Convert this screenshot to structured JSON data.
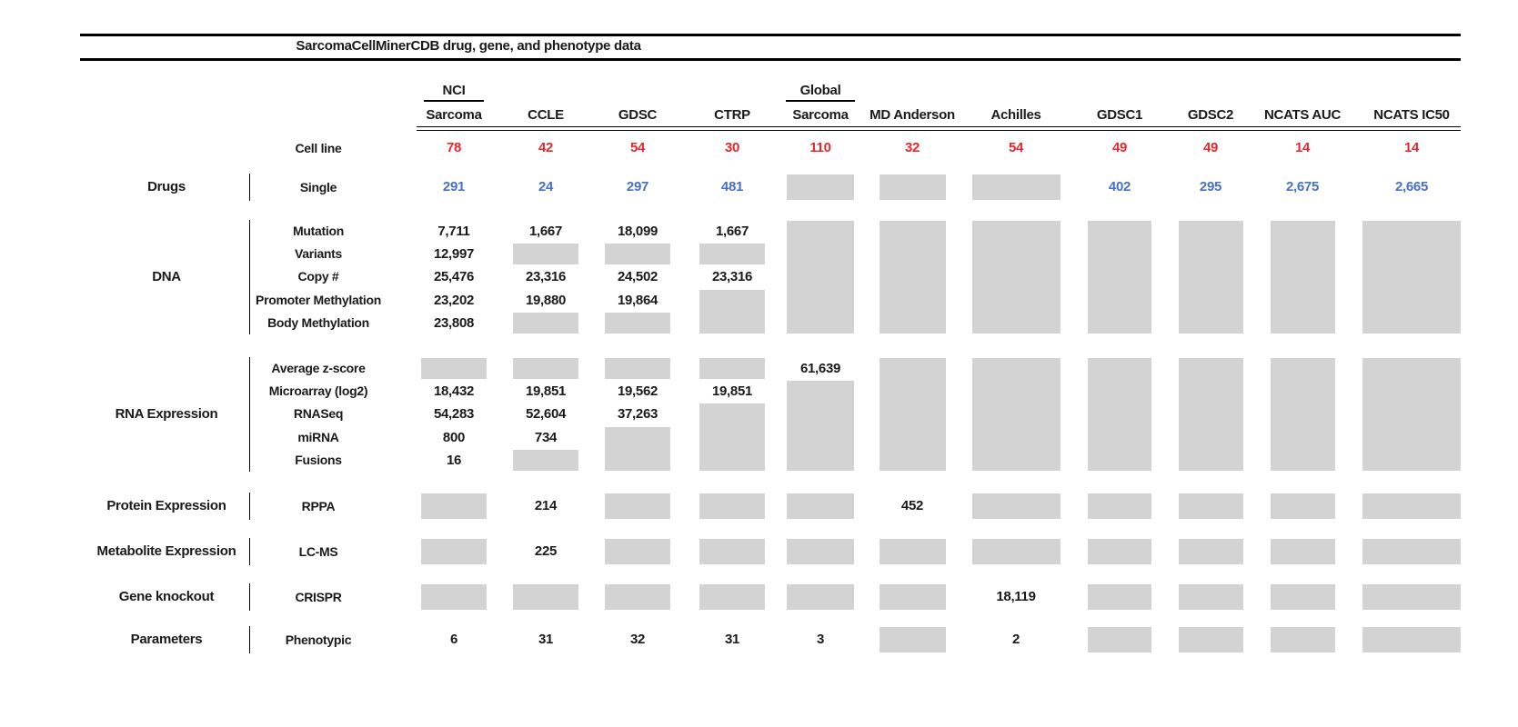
{
  "colors": {
    "red": "#e8262d",
    "blue": "#4671c6",
    "gray": "#d3d3d3",
    "line": "#000000",
    "text": "#1a1a1a"
  },
  "chart_data": {
    "type": "table",
    "title": "SarcomaCellMinerCDB drug, gene, and phenotype data",
    "note_gray_blocks": "gray filled block = no data available",
    "cell_line_label": "Cell line",
    "columns": [
      {
        "top_label": "NCI",
        "label": "Sarcoma",
        "cell_line_count": "78"
      },
      {
        "label": "CCLE",
        "cell_line_count": "42"
      },
      {
        "label": "GDSC",
        "cell_line_count": "54"
      },
      {
        "label": "CTRP",
        "cell_line_count": "30"
      },
      {
        "top_label": "Global",
        "label": "Sarcoma",
        "cell_line_count": "110"
      },
      {
        "label": "MD Anderson",
        "cell_line_count": "32"
      },
      {
        "label": "Achilles",
        "cell_line_count": "54"
      },
      {
        "label": "GDSC1",
        "cell_line_count": "49"
      },
      {
        "label": "GDSC2",
        "cell_line_count": "49"
      },
      {
        "label": "NCATS AUC",
        "cell_line_count": "14"
      },
      {
        "label": "NCATS IC50",
        "cell_line_count": "14"
      }
    ],
    "sections": [
      {
        "category": "Drugs",
        "value_color": "blue",
        "rows": [
          {
            "label": "Single",
            "values": [
              "291",
              "24",
              "297",
              "481",
              null,
              null,
              null,
              "402",
              "295",
              "2,675",
              "2,665"
            ]
          }
        ]
      },
      {
        "category": "DNA",
        "rows": [
          {
            "label": "Mutation",
            "values": [
              "7,711",
              "1,667",
              "18,099",
              "1,667",
              null,
              null,
              null,
              null,
              null,
              null,
              null
            ]
          },
          {
            "label": "Variants",
            "values": [
              "12,997",
              null,
              null,
              null,
              null,
              null,
              null,
              null,
              null,
              null,
              null
            ]
          },
          {
            "label": "Copy #",
            "values": [
              "25,476",
              "23,316",
              "24,502",
              "23,316",
              null,
              null,
              null,
              null,
              null,
              null,
              null
            ]
          },
          {
            "label": "Promoter Methylation",
            "values": [
              "23,202",
              "19,880",
              "19,864",
              null,
              null,
              null,
              null,
              null,
              null,
              null,
              null
            ]
          },
          {
            "label": "Body Methylation",
            "values": [
              "23,808",
              null,
              null,
              null,
              null,
              null,
              null,
              null,
              null,
              null,
              null
            ]
          }
        ]
      },
      {
        "category": "RNA Expression",
        "rows": [
          {
            "label": "Average z-score",
            "values": [
              null,
              null,
              null,
              null,
              "61,639",
              null,
              null,
              null,
              null,
              null,
              null
            ]
          },
          {
            "label": "Microarray (log2)",
            "values": [
              "18,432",
              "19,851",
              "19,562",
              "19,851",
              null,
              null,
              null,
              null,
              null,
              null,
              null
            ]
          },
          {
            "label": "RNASeq",
            "values": [
              "54,283",
              "52,604",
              "37,263",
              null,
              null,
              null,
              null,
              null,
              null,
              null,
              null
            ]
          },
          {
            "label": "miRNA",
            "values": [
              "800",
              "734",
              null,
              null,
              null,
              null,
              null,
              null,
              null,
              null,
              null
            ]
          },
          {
            "label": "Fusions",
            "values": [
              "16",
              null,
              null,
              null,
              null,
              null,
              null,
              null,
              null,
              null,
              null
            ]
          }
        ]
      },
      {
        "category": "Protein Expression",
        "rows": [
          {
            "label": "RPPA",
            "values": [
              null,
              "214",
              null,
              null,
              null,
              "452",
              null,
              null,
              null,
              null,
              null
            ]
          }
        ]
      },
      {
        "category": "Metabolite Expression",
        "rows": [
          {
            "label": "LC-MS",
            "values": [
              null,
              "225",
              null,
              null,
              null,
              null,
              null,
              null,
              null,
              null,
              null
            ]
          }
        ]
      },
      {
        "category": "Gene knockout",
        "rows": [
          {
            "label": "CRISPR",
            "values": [
              null,
              null,
              null,
              null,
              null,
              null,
              "18,119",
              null,
              null,
              null,
              null
            ]
          }
        ]
      },
      {
        "category": "Parameters",
        "rows": [
          {
            "label": "Phenotypic",
            "values": [
              "6",
              "31",
              "32",
              "31",
              "3",
              null,
              "2",
              null,
              null,
              null,
              null
            ]
          }
        ]
      }
    ]
  }
}
